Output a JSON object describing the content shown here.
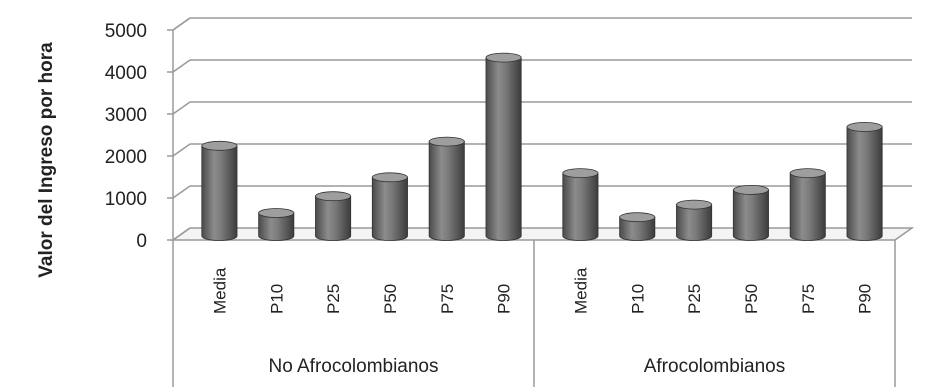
{
  "chart_data": {
    "type": "bar",
    "style": "3d-cylinder",
    "ylabel": "Valor del Ingreso por hora",
    "ylim": [
      0,
      5000
    ],
    "yticks": [
      "0",
      "1000",
      "2000",
      "3000",
      "4000",
      "5000"
    ],
    "grid": true,
    "bar_color": "#6d6d6d",
    "groups": [
      {
        "label": "No Afrocolombianos",
        "categories": [
          "Media",
          "P10",
          "P25",
          "P50",
          "P75",
          "P90"
        ],
        "values": [
          2100,
          500,
          900,
          1350,
          2200,
          4200
        ]
      },
      {
        "label": "Afrocolombianos",
        "categories": [
          "Media",
          "P10",
          "P25",
          "P50",
          "P75",
          "P90"
        ],
        "values": [
          1450,
          400,
          700,
          1050,
          1450,
          2550
        ]
      }
    ]
  }
}
